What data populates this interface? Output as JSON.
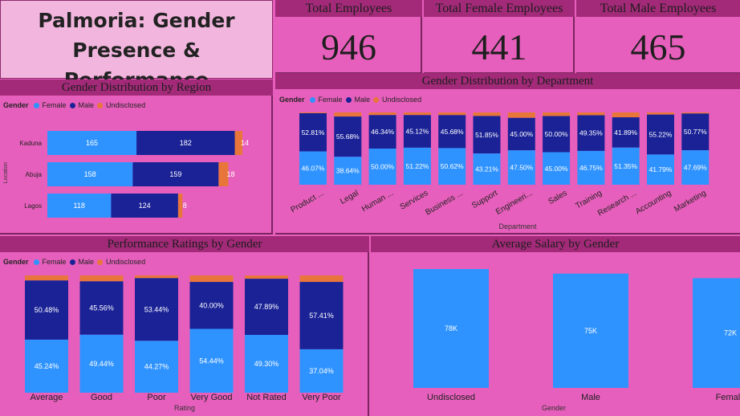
{
  "title": "Palmoria: Gender Presence & Performance",
  "kpis": {
    "total_employees_label": "Total Employees",
    "total_employees_value": "946",
    "female_label": "Total Female Employees",
    "female_value": "441",
    "male_label": "Total Male Employees",
    "male_value": "465"
  },
  "colors": {
    "female": "#2f93ff",
    "male": "#1a2296",
    "undisclosed": "#e8763a",
    "header": "#a22a78",
    "bg": "#e75fbc"
  },
  "legend": {
    "title": "Gender",
    "female": "Female",
    "male": "Male",
    "undisclosed": "Undisclosed"
  },
  "chart_data": [
    {
      "id": "region",
      "type": "bar",
      "title": "Gender Distribution by Region",
      "ylabel": "Location",
      "orientation": "horizontal-stacked",
      "categories": [
        "Kaduna",
        "Abuja",
        "Lagos"
      ],
      "series": [
        {
          "name": "Female",
          "values": [
            165,
            158,
            118
          ]
        },
        {
          "name": "Male",
          "values": [
            182,
            159,
            124
          ]
        },
        {
          "name": "Undisclosed",
          "values": [
            14,
            18,
            8
          ]
        }
      ]
    },
    {
      "id": "department",
      "type": "bar",
      "title": "Gender Distribution by Department",
      "xlabel": "Department",
      "orientation": "vertical-100pct-stacked",
      "categories": [
        "Product ...",
        "Legal",
        "Human ...",
        "Services",
        "Business ...",
        "Support",
        "Engineeri...",
        "Sales",
        "Training",
        "Research ...",
        "Accounting",
        "Marketing"
      ],
      "series": [
        {
          "name": "Female",
          "values": [
            46.07,
            38.64,
            50.0,
            51.22,
            50.62,
            43.21,
            47.5,
            45.0,
            46.75,
            51.35,
            41.79,
            47.69
          ]
        },
        {
          "name": "Male",
          "values": [
            52.81,
            55.68,
            46.34,
            45.12,
            45.68,
            51.85,
            45.0,
            50.0,
            49.35,
            41.89,
            55.22,
            50.77
          ]
        },
        {
          "name": "Undisclosed",
          "values": [
            1.12,
            5.68,
            3.66,
            3.66,
            3.7,
            4.94,
            7.5,
            5.0,
            3.9,
            6.76,
            2.99,
            1.54
          ]
        }
      ]
    },
    {
      "id": "rating",
      "type": "bar",
      "title": "Performance Ratings by Gender",
      "xlabel": "Rating",
      "orientation": "vertical-100pct-stacked",
      "categories": [
        "Average",
        "Good",
        "Poor",
        "Very Good",
        "Not Rated",
        "Very Poor"
      ],
      "series": [
        {
          "name": "Female",
          "values": [
            45.24,
            49.44,
            44.27,
            54.44,
            49.3,
            37.04
          ]
        },
        {
          "name": "Male",
          "values": [
            50.48,
            45.56,
            53.44,
            40.0,
            47.89,
            57.41
          ]
        },
        {
          "name": "Undisclosed",
          "values": [
            4.28,
            5.0,
            2.29,
            5.56,
            2.81,
            5.55
          ]
        }
      ]
    },
    {
      "id": "salary",
      "type": "bar",
      "title": "Average Salary by Gender",
      "xlabel": "Gender",
      "categories": [
        "Undisclosed",
        "Male",
        "Female"
      ],
      "values": [
        78,
        75,
        72
      ],
      "value_labels": [
        "78K",
        "75K",
        "72K"
      ]
    }
  ]
}
